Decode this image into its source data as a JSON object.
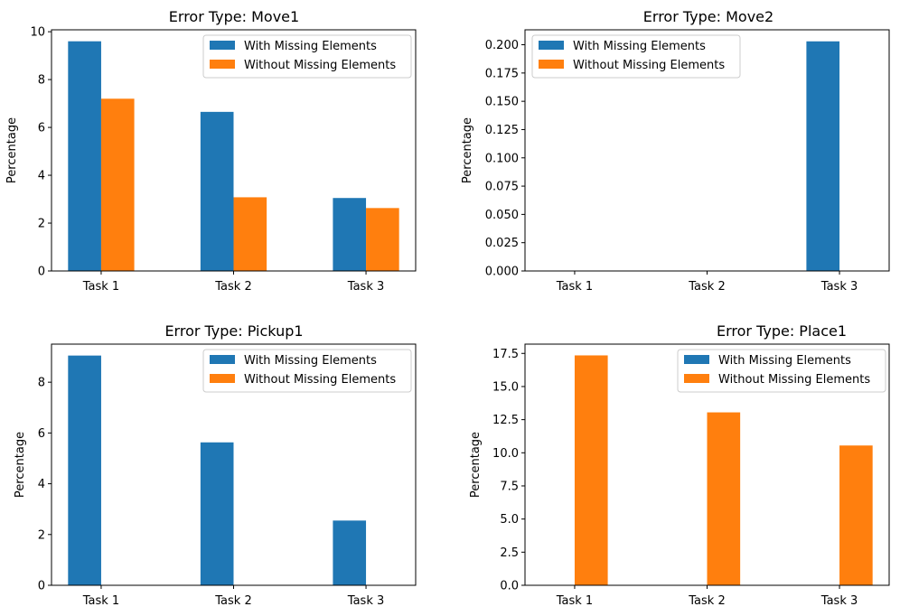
{
  "colors": {
    "series_a": "#1f77b4",
    "series_b": "#ff7f0e"
  },
  "chart_data": [
    {
      "type": "bar",
      "title": "Error Type: Move1",
      "xlabel": "",
      "ylabel": "Percentage",
      "categories": [
        "Task 1",
        "Task 2",
        "Task 3"
      ],
      "series": [
        {
          "name": "With Missing Elements",
          "values": [
            9.6,
            6.65,
            3.05
          ]
        },
        {
          "name": "Without Missing Elements",
          "values": [
            7.2,
            3.08,
            2.63
          ]
        }
      ],
      "ylim": [
        0,
        10.08
      ],
      "yticks": [
        0,
        2,
        4,
        6,
        8,
        10
      ],
      "ytick_labels": [
        "0",
        "2",
        "4",
        "6",
        "8",
        "10"
      ],
      "legend": "top-right"
    },
    {
      "type": "bar",
      "title": "Error Type: Move2",
      "xlabel": "",
      "ylabel": "Percentage",
      "categories": [
        "Task 1",
        "Task 2",
        "Task 3"
      ],
      "series": [
        {
          "name": "With Missing Elements",
          "values": [
            0,
            0,
            0.203
          ]
        },
        {
          "name": "Without Missing Elements",
          "values": [
            0,
            0,
            0
          ]
        }
      ],
      "ylim": [
        0,
        0.2132
      ],
      "yticks": [
        0,
        0.025,
        0.05,
        0.075,
        0.1,
        0.125,
        0.15,
        0.175,
        0.2
      ],
      "ytick_labels": [
        "0.000",
        "0.025",
        "0.050",
        "0.075",
        "0.100",
        "0.125",
        "0.150",
        "0.175",
        "0.200"
      ],
      "legend": "top-left"
    },
    {
      "type": "bar",
      "title": "Error Type: Pickup1",
      "xlabel": "",
      "ylabel": "Percentage",
      "categories": [
        "Task 1",
        "Task 2",
        "Task 3"
      ],
      "series": [
        {
          "name": "With Missing Elements",
          "values": [
            9.05,
            5.63,
            2.55
          ]
        },
        {
          "name": "Without Missing Elements",
          "values": [
            0,
            0,
            0
          ]
        }
      ],
      "ylim": [
        0,
        9.5
      ],
      "yticks": [
        0,
        2,
        4,
        6,
        8
      ],
      "ytick_labels": [
        "0",
        "2",
        "4",
        "6",
        "8"
      ],
      "legend": "top-right"
    },
    {
      "type": "bar",
      "title": "Error Type: Place1",
      "xlabel": "",
      "ylabel": "Percentage",
      "categories": [
        "Task 1",
        "Task 2",
        "Task 3"
      ],
      "series": [
        {
          "name": "With Missing Elements",
          "values": [
            0,
            0,
            0
          ]
        },
        {
          "name": "Without Missing Elements",
          "values": [
            17.35,
            13.05,
            10.55
          ]
        }
      ],
      "ylim": [
        0,
        18.2
      ],
      "yticks": [
        0,
        2.5,
        5,
        7.5,
        10,
        12.5,
        15,
        17.5
      ],
      "ytick_labels": [
        "0.0",
        "2.5",
        "5.0",
        "7.5",
        "10.0",
        "12.5",
        "15.0",
        "17.5"
      ],
      "legend": "top-right"
    }
  ]
}
